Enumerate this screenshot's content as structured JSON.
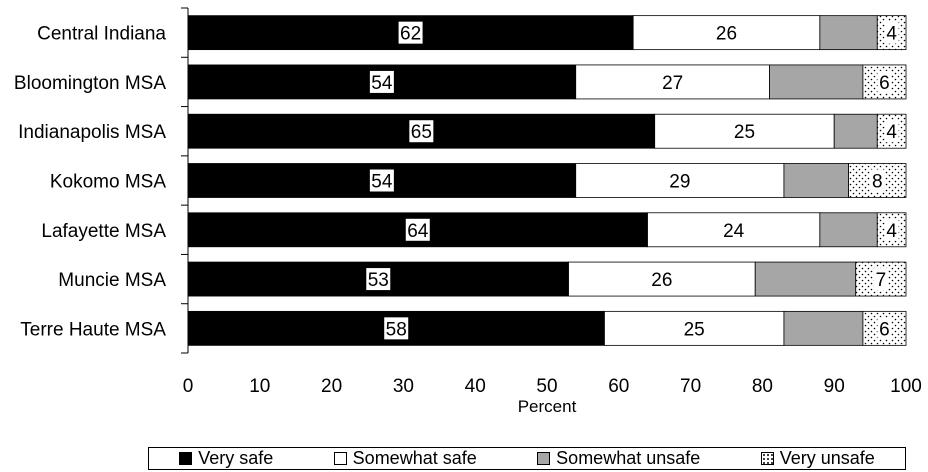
{
  "chart_data": {
    "type": "bar",
    "orientation": "horizontal",
    "stacked": true,
    "categories": [
      "Central Indiana",
      "Bloomington MSA",
      "Indianapolis MSA",
      "Kokomo MSA",
      "Lafayette MSA",
      "Muncie MSA",
      "Terre Haute MSA"
    ],
    "series": [
      {
        "name": "Very safe",
        "values": [
          62,
          54,
          65,
          54,
          64,
          53,
          58
        ],
        "color": "#000000",
        "pattern": "solid"
      },
      {
        "name": "Somewhat safe",
        "values": [
          26,
          27,
          25,
          29,
          24,
          26,
          25
        ],
        "color": "#ffffff",
        "pattern": "solid"
      },
      {
        "name": "Somewhat unsafe",
        "values": [
          8,
          13,
          6,
          9,
          8,
          14,
          11
        ],
        "color": "#a6a6a6",
        "pattern": "solid"
      },
      {
        "name": "Very unsafe",
        "values": [
          4,
          6,
          4,
          8,
          4,
          7,
          6
        ],
        "color": "#ffffff",
        "pattern": "dotted"
      }
    ],
    "data_labels": {
      "Very safe": [
        "62",
        "54",
        "65",
        "54",
        "64",
        "53",
        "58"
      ],
      "Somewhat safe": [
        "26",
        "27",
        "25",
        "29",
        "24",
        "26",
        "25"
      ],
      "Very unsafe": [
        "4",
        "6",
        "4",
        "8",
        "4",
        "7",
        "6"
      ]
    },
    "xlabel": "Percent",
    "ylabel": "",
    "xlim": [
      0,
      100
    ],
    "xticks": [
      "0",
      "10",
      "20",
      "30",
      "40",
      "50",
      "60",
      "70",
      "80",
      "90",
      "100"
    ],
    "grid": false,
    "legend_position": "bottom"
  },
  "legend": {
    "very_safe": "Very safe",
    "somewhat_safe": "Somewhat safe",
    "somewhat_unsafe": "Somewhat unsafe",
    "very_unsafe": "Very  unsafe"
  }
}
